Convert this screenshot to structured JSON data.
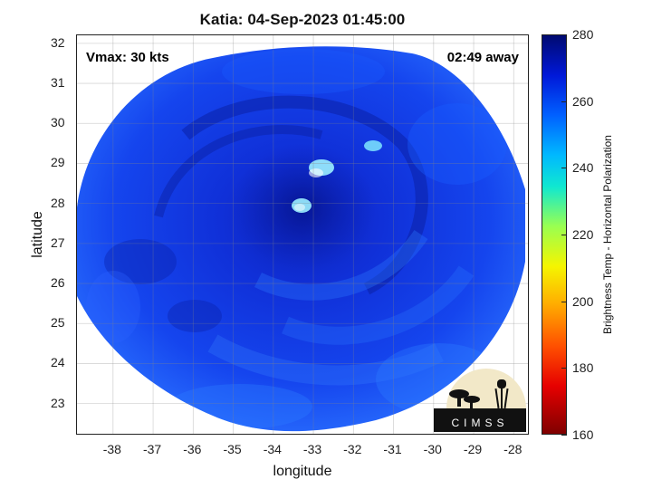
{
  "title": "Katia: 04-Sep-2023 01:45:00",
  "vmax_label": "Vmax: 30 kts",
  "away_label": "02:49 away",
  "xlabel": "longitude",
  "ylabel": "latitude",
  "colorbar_label": "Brightness Temp - Horizontal Polarization",
  "logo_text": "CIMSS",
  "x_ticks": [
    "-38",
    "-37",
    "-36",
    "-35",
    "-34",
    "-33",
    "-32",
    "-31",
    "-30",
    "-29",
    "-28"
  ],
  "y_ticks": [
    "32",
    "31",
    "30",
    "29",
    "28",
    "27",
    "26",
    "25",
    "24",
    "23"
  ],
  "colorbar_ticks": [
    "280",
    "260",
    "240",
    "220",
    "200",
    "180",
    "160"
  ],
  "chart_data": {
    "type": "heatmap",
    "title": "Katia: 04-Sep-2023 01:45:00",
    "xlabel": "longitude",
    "ylabel": "latitude",
    "xlim": [
      -38.9,
      -27.6
    ],
    "ylim": [
      22.2,
      32.2
    ],
    "clim": [
      160,
      280
    ],
    "colorbar_label": "Brightness Temp - Horizontal Polarization",
    "colormap": "jet",
    "grid": true,
    "center": {
      "lon": -33,
      "lat": 27.3
    },
    "dominant_value_range": [
      250,
      275
    ],
    "annotations": [
      "Vmax: 30 kts",
      "02:49 away"
    ]
  },
  "colors": {
    "swath_base": "#1238e6",
    "swath_dark": "#0a1ea0",
    "swath_light": "#2a78ff",
    "cyan_spots": "#7fe6ff"
  }
}
